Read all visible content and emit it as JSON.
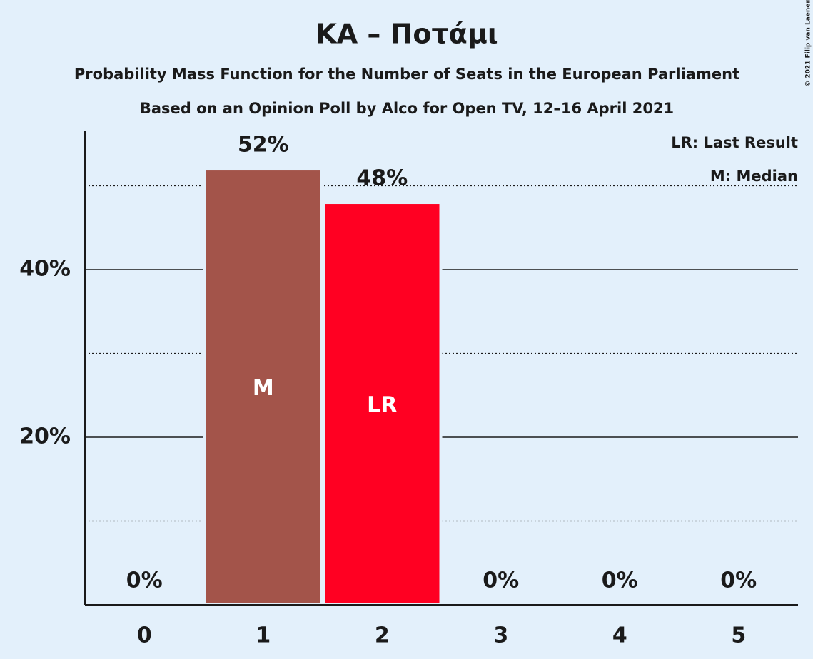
{
  "chart_data": {
    "type": "bar",
    "title": "ΚΑ – Ποτάμι",
    "subtitle": "Probability Mass Function for the Number of Seats in the European Parliament",
    "subtitle2": "Based on an Opinion Poll by Alco for Open TV, 12–16 April 2021",
    "copyright": "© 2021 Filip van Laenen",
    "categories": [
      "0",
      "1",
      "2",
      "3",
      "4",
      "5"
    ],
    "values": [
      0,
      52,
      48,
      0,
      0,
      0
    ],
    "value_labels": [
      "0%",
      "52%",
      "48%",
      "0%",
      "0%",
      "0%"
    ],
    "colors": [
      "#a3544a",
      "#a3544a",
      "#ff0022",
      "#a3544a",
      "#a3544a",
      "#a3544a"
    ],
    "bar_labels": [
      null,
      "M",
      "LR",
      null,
      null,
      null
    ],
    "legend": [
      "LR: Last Result",
      "M: Median"
    ],
    "ylim": [
      0,
      56.6
    ],
    "yticks": [
      {
        "value": 20,
        "label": "20%"
      },
      {
        "value": 40,
        "label": "40%"
      }
    ],
    "minor_yticks": [
      10,
      30,
      50
    ],
    "grid": true
  }
}
